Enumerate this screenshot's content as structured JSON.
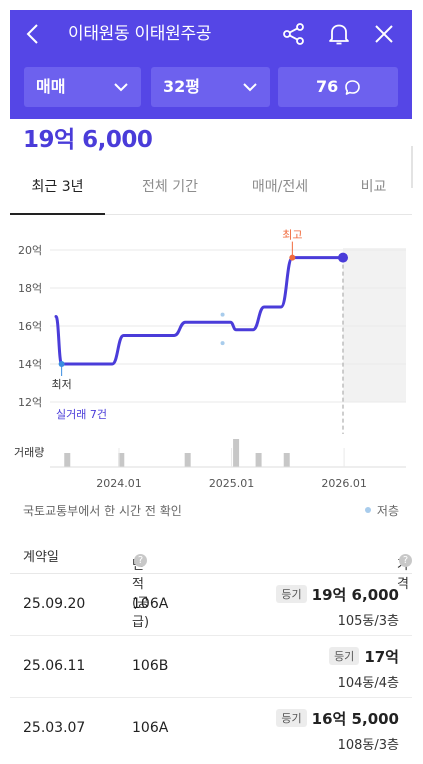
{
  "header": {
    "title": "이태원동 이태원주공",
    "icons": [
      "back-icon",
      "share-icon",
      "bell-icon",
      "close-icon"
    ],
    "selectors": {
      "deal_type": "매매",
      "size": "32평",
      "comments": "76"
    }
  },
  "price": "19억 6,000",
  "tabs": [
    "최근 3년",
    "전체 기간",
    "매매/전세",
    "비교"
  ],
  "chart_data": {
    "type": "line",
    "y_unit_ticks": [
      "20억",
      "18억",
      "16억",
      "14억",
      "12억"
    ],
    "ylim": [
      12,
      20
    ],
    "x_ticks": [
      "2024.01",
      "2025.01",
      "2026.01"
    ],
    "series": [
      {
        "values": [
          [
            2023.45,
            16.5
          ],
          [
            2023.5,
            14.0
          ],
          [
            2023.95,
            14.0
          ],
          [
            2024.05,
            15.5
          ],
          [
            2024.5,
            15.5
          ],
          [
            2024.6,
            16.2
          ],
          [
            2025.0,
            16.2
          ],
          [
            2025.05,
            15.8
          ],
          [
            2025.2,
            15.8
          ],
          [
            2025.3,
            17.0
          ],
          [
            2025.45,
            17.0
          ],
          [
            2025.55,
            19.6
          ],
          [
            2026.0,
            19.6
          ]
        ]
      }
    ],
    "low_points": [
      [
        2024.93,
        15.1
      ]
    ],
    "high_points": [
      [
        2024.93,
        16.6
      ]
    ],
    "annotations": {
      "max_label": "최고",
      "min_label": "최저",
      "trade_count_label": "실거래 7건"
    },
    "volume_label": "거래량",
    "volume_bars": [
      {
        "x": 2023.55,
        "count": 1
      },
      {
        "x": 2024.03,
        "count": 1
      },
      {
        "x": 2024.62,
        "count": 1
      },
      {
        "x": 2025.05,
        "count": 2
      },
      {
        "x": 2025.25,
        "count": 1
      },
      {
        "x": 2025.5,
        "count": 1
      }
    ]
  },
  "info_text": "국토교통부에서 한 시간 전 확인",
  "legend_low": "저층",
  "table": {
    "headers": {
      "date": "계약일",
      "area": "면적(공급)",
      "price": "가격"
    },
    "rows": [
      {
        "date": "25.09.20",
        "area": "106A",
        "badge": "등기",
        "price": "19억 6,000",
        "unit": "105동/3층"
      },
      {
        "date": "25.06.11",
        "area": "106B",
        "badge": "등기",
        "price": "17억",
        "unit": "104동/4층"
      },
      {
        "date": "25.03.07",
        "area": "106A",
        "badge": "등기",
        "price": "16억 5,000",
        "unit": "108동/3층"
      }
    ]
  },
  "colors": {
    "brand": "#5546e6",
    "line": "#4a3cd9",
    "max_marker": "#f06a3c",
    "min_marker": "#3b8de0"
  }
}
